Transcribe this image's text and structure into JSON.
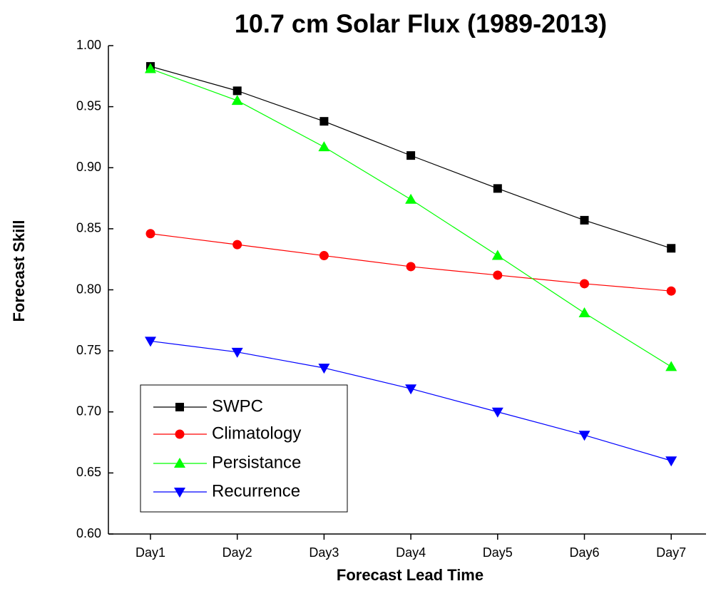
{
  "chart_data": {
    "type": "line",
    "title": "10.7 cm Solar Flux (1989-2013)",
    "x_label": "Forecast Lead Time",
    "y_label": "Forecast Skill",
    "categories": [
      "Day1",
      "Day2",
      "Day3",
      "Day4",
      "Day5",
      "Day6",
      "Day7"
    ],
    "series": [
      {
        "name": "SWPC",
        "color": "#000000",
        "marker": "square",
        "values": [
          0.983,
          0.963,
          0.938,
          0.91,
          0.883,
          0.857,
          0.834
        ]
      },
      {
        "name": "Climatology",
        "color": "#ff0000",
        "marker": "circle",
        "values": [
          0.846,
          0.837,
          0.828,
          0.819,
          0.812,
          0.805,
          0.799
        ]
      },
      {
        "name": "Persistance",
        "color": "#00ff00",
        "marker": "triangle-up",
        "values": [
          0.981,
          0.955,
          0.917,
          0.874,
          0.828,
          0.781,
          0.737
        ]
      },
      {
        "name": "Recurrence",
        "color": "#0000ff",
        "marker": "triangle-down",
        "values": [
          0.758,
          0.749,
          0.736,
          0.719,
          0.7,
          0.681,
          0.66
        ]
      }
    ],
    "ylim": [
      0.6,
      1.0
    ],
    "yticks": [
      {
        "value": 0.6,
        "label": "0.60"
      },
      0.65,
      {
        "value": 0.7,
        "label": "0.70"
      },
      0.75,
      {
        "value": 0.8,
        "label": "0.80"
      },
      0.85,
      {
        "value": 0.9,
        "label": "0.90"
      },
      0.95,
      {
        "value": 1.0,
        "label": "1.00"
      }
    ],
    "grid": false,
    "legend": "lower left"
  }
}
